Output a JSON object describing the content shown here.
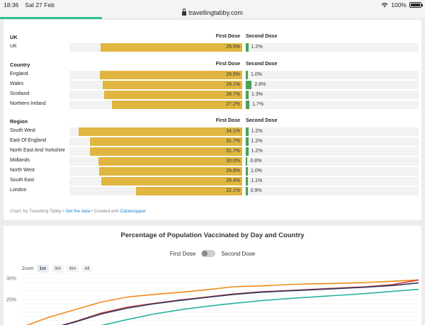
{
  "status": {
    "time": "18:36",
    "date": "Sat 27 Feb",
    "battery": "100%"
  },
  "browser": {
    "url": "travellingtabby.com",
    "load_progress": 0.24
  },
  "colors": {
    "first_dose": "#e0b640",
    "second_dose": "#4aa05e",
    "progress": "#2bc38a"
  },
  "table": {
    "first_dose_header": "First Dose",
    "second_dose_header": "Second Dose",
    "sections": [
      {
        "title": "UK",
        "rows": [
          {
            "name": "UK",
            "first": "29.5%",
            "first_value": 29.5,
            "second": "1.2%",
            "second_value": 1.2
          }
        ]
      },
      {
        "title": "Country",
        "rows": [
          {
            "name": "England",
            "first": "29.6%",
            "first_value": 29.6,
            "second": "1.0%",
            "second_value": 1.0
          },
          {
            "name": "Wales",
            "first": "29.1%",
            "first_value": 29.1,
            "second": "2.8%",
            "second_value": 2.8
          },
          {
            "name": "Scotland",
            "first": "28.7%",
            "first_value": 28.7,
            "second": "1.3%",
            "second_value": 1.3
          },
          {
            "name": "Northern Ireland",
            "first": "27.2%",
            "first_value": 27.2,
            "second": "1.7%",
            "second_value": 1.7
          }
        ]
      },
      {
        "title": "Region",
        "rows": [
          {
            "name": "South West",
            "first": "34.1%",
            "first_value": 34.1,
            "second": "1.2%",
            "second_value": 1.2
          },
          {
            "name": "East Of England",
            "first": "31.7%",
            "first_value": 31.7,
            "second": "1.2%",
            "second_value": 1.2
          },
          {
            "name": "North East And Yorkshire",
            "first": "31.7%",
            "first_value": 31.7,
            "second": "1.2%",
            "second_value": 1.2
          },
          {
            "name": "Midlands",
            "first": "30.0%",
            "first_value": 30.0,
            "second": "0.8%",
            "second_value": 0.8
          },
          {
            "name": "North West",
            "first": "29.8%",
            "first_value": 29.8,
            "second": "1.0%",
            "second_value": 1.0
          },
          {
            "name": "South East",
            "first": "29.4%",
            "first_value": 29.4,
            "second": "1.1%",
            "second_value": 1.1
          },
          {
            "name": "London",
            "first": "22.1%",
            "first_value": 22.1,
            "second": "0.9%",
            "second_value": 0.9
          }
        ]
      }
    ],
    "footer": {
      "prefix": "Chart: by Travelling Tabby • ",
      "get_data": "Get the data",
      "middle": " • Created with ",
      "datawrapper": "Datawrapper"
    }
  },
  "line_chart": {
    "title": "Percentage of Population Vaccinated by Day and Country",
    "toggle_left": "First Dose",
    "toggle_right": "Second Dose",
    "zoom_label": "Zoom",
    "zoom_options": [
      "1m",
      "3m",
      "6m",
      "All"
    ],
    "zoom_selected": "1m"
  },
  "chart_data": {
    "type": "line",
    "title": "Percentage of Population Vaccinated by Day and Country",
    "yticks": [
      "30%",
      "25%"
    ],
    "ylim": [
      17,
      31
    ],
    "x": [
      0,
      1,
      2,
      3,
      4,
      5,
      6,
      7,
      8,
      9,
      10,
      11,
      12,
      13,
      14,
      15
    ],
    "series": [
      {
        "color": "#ef8a1a",
        "values": [
          18.5,
          20.8,
          22.6,
          24.4,
          25.6,
          26.2,
          26.7,
          27.3,
          28.0,
          28.2,
          28.5,
          28.7,
          28.8,
          29.0,
          29.3,
          29.6
        ]
      },
      {
        "color": "#d63b2f",
        "values": [
          17.2,
          18.0,
          19.8,
          21.8,
          23.2,
          24.1,
          24.9,
          25.6,
          26.3,
          26.8,
          27.1,
          27.4,
          27.7,
          28.0,
          28.5,
          29.6
        ]
      },
      {
        "color": "#2d3a66",
        "values": [
          17.2,
          18.0,
          19.7,
          21.6,
          23.0,
          24.0,
          24.8,
          25.5,
          26.2,
          26.7,
          27.0,
          27.3,
          27.6,
          27.9,
          28.3,
          28.9
        ]
      },
      {
        "color": "#27b3a0",
        "values": [
          16.8,
          16.8,
          17.4,
          18.9,
          20.3,
          21.6,
          22.6,
          23.4,
          24.1,
          24.7,
          25.2,
          25.6,
          26.0,
          26.4,
          26.9,
          27.4
        ]
      }
    ]
  }
}
